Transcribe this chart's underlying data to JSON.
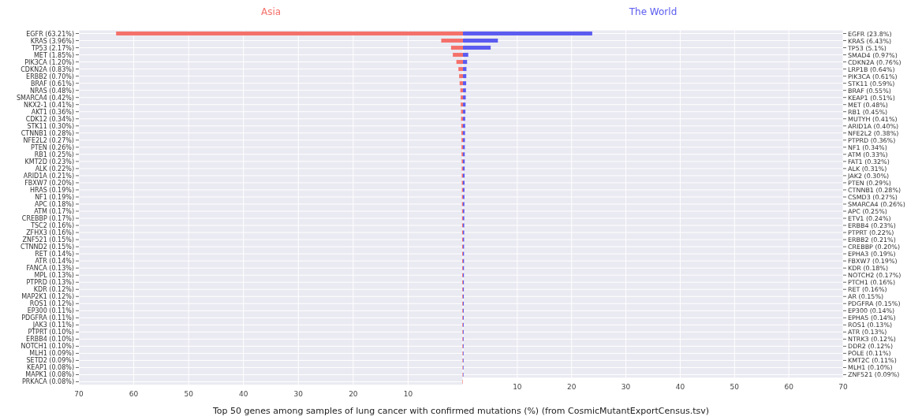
{
  "chart_data": [
    {
      "type": "bar",
      "orientation": "horizontal",
      "title": "Asia",
      "xlabel": "Top 50 genes among samples of lung cancer with confirmed mutations (%) (from CosmicMutantExportCensus.tsv)",
      "grid": true,
      "categories": [
        "EGFR (63.21%)",
        "KRAS (3.96%)",
        "TP53 (2.17%)",
        "MET (1.85%)",
        "PIK3CA (1.20%)",
        "CDKN2A (0.83%)",
        "ERBB2 (0.70%)",
        "BRAF (0.61%)",
        "NRAS (0.48%)",
        "SMARCA4 (0.42%)",
        "NKX2-1 (0.41%)",
        "AKT1 (0.36%)",
        "CDK12 (0.34%)",
        "STK11 (0.30%)",
        "CTNNB1 (0.28%)",
        "NFE2L2 (0.27%)",
        "PTEN (0.26%)",
        "RB1 (0.25%)",
        "KMT2D (0.23%)",
        "ALK (0.22%)",
        "ARID1A (0.21%)",
        "FBXW7 (0.20%)",
        "HRAS (0.19%)",
        "NF1 (0.19%)",
        "APC (0.18%)",
        "ATM (0.17%)",
        "CREBBP (0.17%)",
        "TSC2 (0.16%)",
        "ZFHX3 (0.16%)",
        "ZNF521 (0.15%)",
        "CTNND2 (0.15%)",
        "RET (0.14%)",
        "ATR (0.14%)",
        "FANCA (0.13%)",
        "MPL (0.13%)",
        "PTPRD (0.13%)",
        "KDR (0.12%)",
        "MAP2K1 (0.12%)",
        "ROS1 (0.12%)",
        "EP300 (0.11%)",
        "PDGFRA (0.11%)",
        "JAK3 (0.11%)",
        "PTPRT (0.10%)",
        "ERBB4 (0.10%)",
        "NOTCH1 (0.10%)",
        "MLH1 (0.09%)",
        "SETD2 (0.09%)",
        "KEAP1 (0.08%)",
        "MAPK1 (0.08%)",
        "PRKACA (0.08%)"
      ],
      "series": [
        {
          "color": "#f4716b",
          "values": [
            63.21,
            3.96,
            2.17,
            1.85,
            1.2,
            0.83,
            0.7,
            0.61,
            0.48,
            0.42,
            0.41,
            0.36,
            0.34,
            0.3,
            0.28,
            0.27,
            0.26,
            0.25,
            0.23,
            0.22,
            0.21,
            0.2,
            0.19,
            0.19,
            0.18,
            0.17,
            0.17,
            0.16,
            0.16,
            0.15,
            0.15,
            0.14,
            0.14,
            0.13,
            0.13,
            0.13,
            0.12,
            0.12,
            0.12,
            0.11,
            0.11,
            0.11,
            0.1,
            0.1,
            0.1,
            0.09,
            0.09,
            0.08,
            0.08,
            0.08
          ]
        }
      ],
      "xlim": [
        70,
        0
      ],
      "xticks": [
        {
          "value": 0,
          "label": null
        },
        10,
        20,
        30,
        40,
        50,
        60,
        70
      ]
    },
    {
      "type": "bar",
      "orientation": "horizontal",
      "title": "The World",
      "grid": true,
      "categories": [
        "EGFR (23.8%)",
        "KRAS (6.43%)",
        "TP53 (5.1%)",
        "SMAD4 (0.97%)",
        "CDKN2A (0.76%)",
        "LRP1B (0.64%)",
        "PIK3CA (0.61%)",
        "STK11 (0.59%)",
        "BRAF (0.55%)",
        "KEAP1 (0.51%)",
        "MET (0.48%)",
        "RB1 (0.45%)",
        "MUTYH (0.41%)",
        "ARID1A (0.40%)",
        "NFE2L2 (0.38%)",
        "PTPRD (0.36%)",
        "NF1 (0.34%)",
        "ATM (0.33%)",
        "FAT1 (0.32%)",
        "ALK (0.31%)",
        "JAK2 (0.30%)",
        "PTEN (0.29%)",
        "CTNNB1 (0.28%)",
        "CSMD3 (0.27%)",
        "SMARCA4 (0.26%)",
        "APC (0.25%)",
        "ETV1 (0.24%)",
        "ERBB4 (0.23%)",
        "PTPRT (0.22%)",
        "ERBB2 (0.21%)",
        "CREBBP (0.20%)",
        "EPHA3 (0.19%)",
        "FBXW7 (0.19%)",
        "KDR (0.18%)",
        "NOTCH2 (0.17%)",
        "PTCH1 (0.16%)",
        "RET (0.16%)",
        "AR (0.15%)",
        "PDGFRA (0.15%)",
        "EP300 (0.14%)",
        "EPHA5 (0.14%)",
        "ROS1 (0.13%)",
        "ATR (0.13%)",
        "NTRK3 (0.12%)",
        "DDR2 (0.12%)",
        "POLE (0.11%)",
        "KMT2C (0.11%)",
        "MLH1 (0.10%)",
        "ZNF521 (0.09%)"
      ],
      "series": [
        {
          "color": "#5b5bf0",
          "values": [
            23.8,
            6.43,
            5.1,
            0.97,
            0.76,
            0.64,
            0.61,
            0.59,
            0.55,
            0.51,
            0.48,
            0.45,
            0.41,
            0.4,
            0.38,
            0.36,
            0.34,
            0.33,
            0.32,
            0.31,
            0.3,
            0.29,
            0.28,
            0.27,
            0.26,
            0.25,
            0.24,
            0.23,
            0.22,
            0.21,
            0.2,
            0.19,
            0.19,
            0.18,
            0.17,
            0.16,
            0.16,
            0.15,
            0.15,
            0.14,
            0.14,
            0.13,
            0.13,
            0.12,
            0.12,
            0.11,
            0.11,
            0.1,
            0.09
          ]
        }
      ],
      "xlim": [
        0,
        70
      ],
      "xticks": [
        {
          "value": 0,
          "label": null
        },
        10,
        20,
        30,
        40,
        50,
        60,
        70
      ]
    }
  ]
}
